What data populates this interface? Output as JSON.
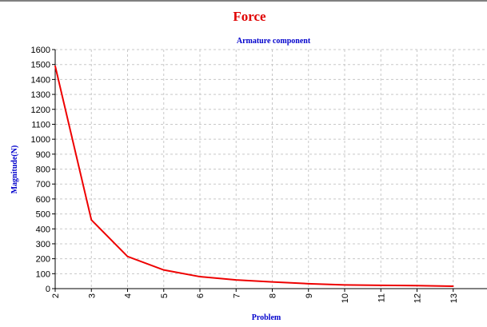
{
  "chart_data": {
    "type": "line",
    "title": "Force",
    "subtitle": "Armature component",
    "xlabel": "Problem",
    "ylabel": "Magnitude(N)",
    "x": [
      2,
      3,
      4,
      5,
      6,
      7,
      8,
      9,
      10,
      11,
      12,
      13
    ],
    "series": [
      {
        "values": [
          1490,
          460,
          215,
          125,
          80,
          58,
          45,
          33,
          25,
          22,
          20,
          16
        ]
      }
    ],
    "xlim": [
      2,
      14
    ],
    "ylim": [
      0,
      1600
    ],
    "yticks": [
      0,
      100,
      200,
      300,
      400,
      500,
      600,
      700,
      800,
      900,
      1000,
      1100,
      1200,
      1300,
      1400,
      1500,
      1600
    ],
    "xticks": [
      2,
      3,
      4,
      5,
      6,
      7,
      8,
      9,
      10,
      11,
      12,
      13
    ],
    "grid": true,
    "colors": {
      "title": "#e00000",
      "subtitle": "#0000cc",
      "axis_label": "#0000cc",
      "series": "#ee0000",
      "grid": "#c8c8c8"
    }
  }
}
